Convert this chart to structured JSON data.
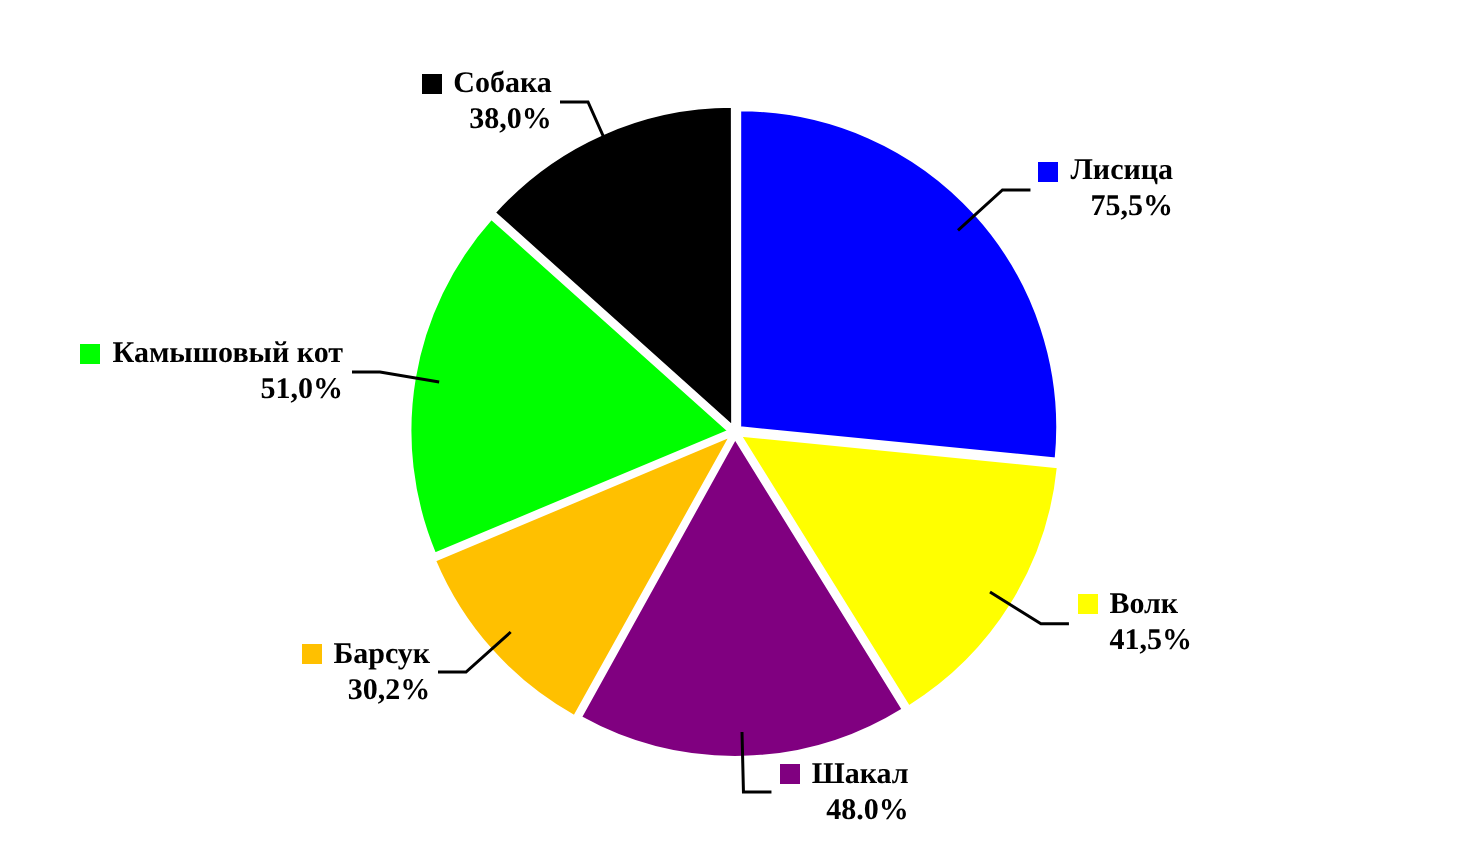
{
  "chart_data": {
    "type": "pie",
    "categories": [
      "Лисица",
      "Волк",
      "Шакал",
      "Барсук",
      "Камышовый кот",
      "Собака"
    ],
    "values": [
      75.5,
      41.5,
      48.0,
      30.2,
      51.0,
      38.0
    ],
    "value_labels": [
      "75,5%",
      "41,5%",
      "48.0%",
      "30,2%",
      "51,0%",
      "38,0%"
    ],
    "colors": [
      "#0000ff",
      "#ffff00",
      "#800080",
      "#ffc000",
      "#00ff00",
      "#000000"
    ],
    "legend": "top left"
  }
}
